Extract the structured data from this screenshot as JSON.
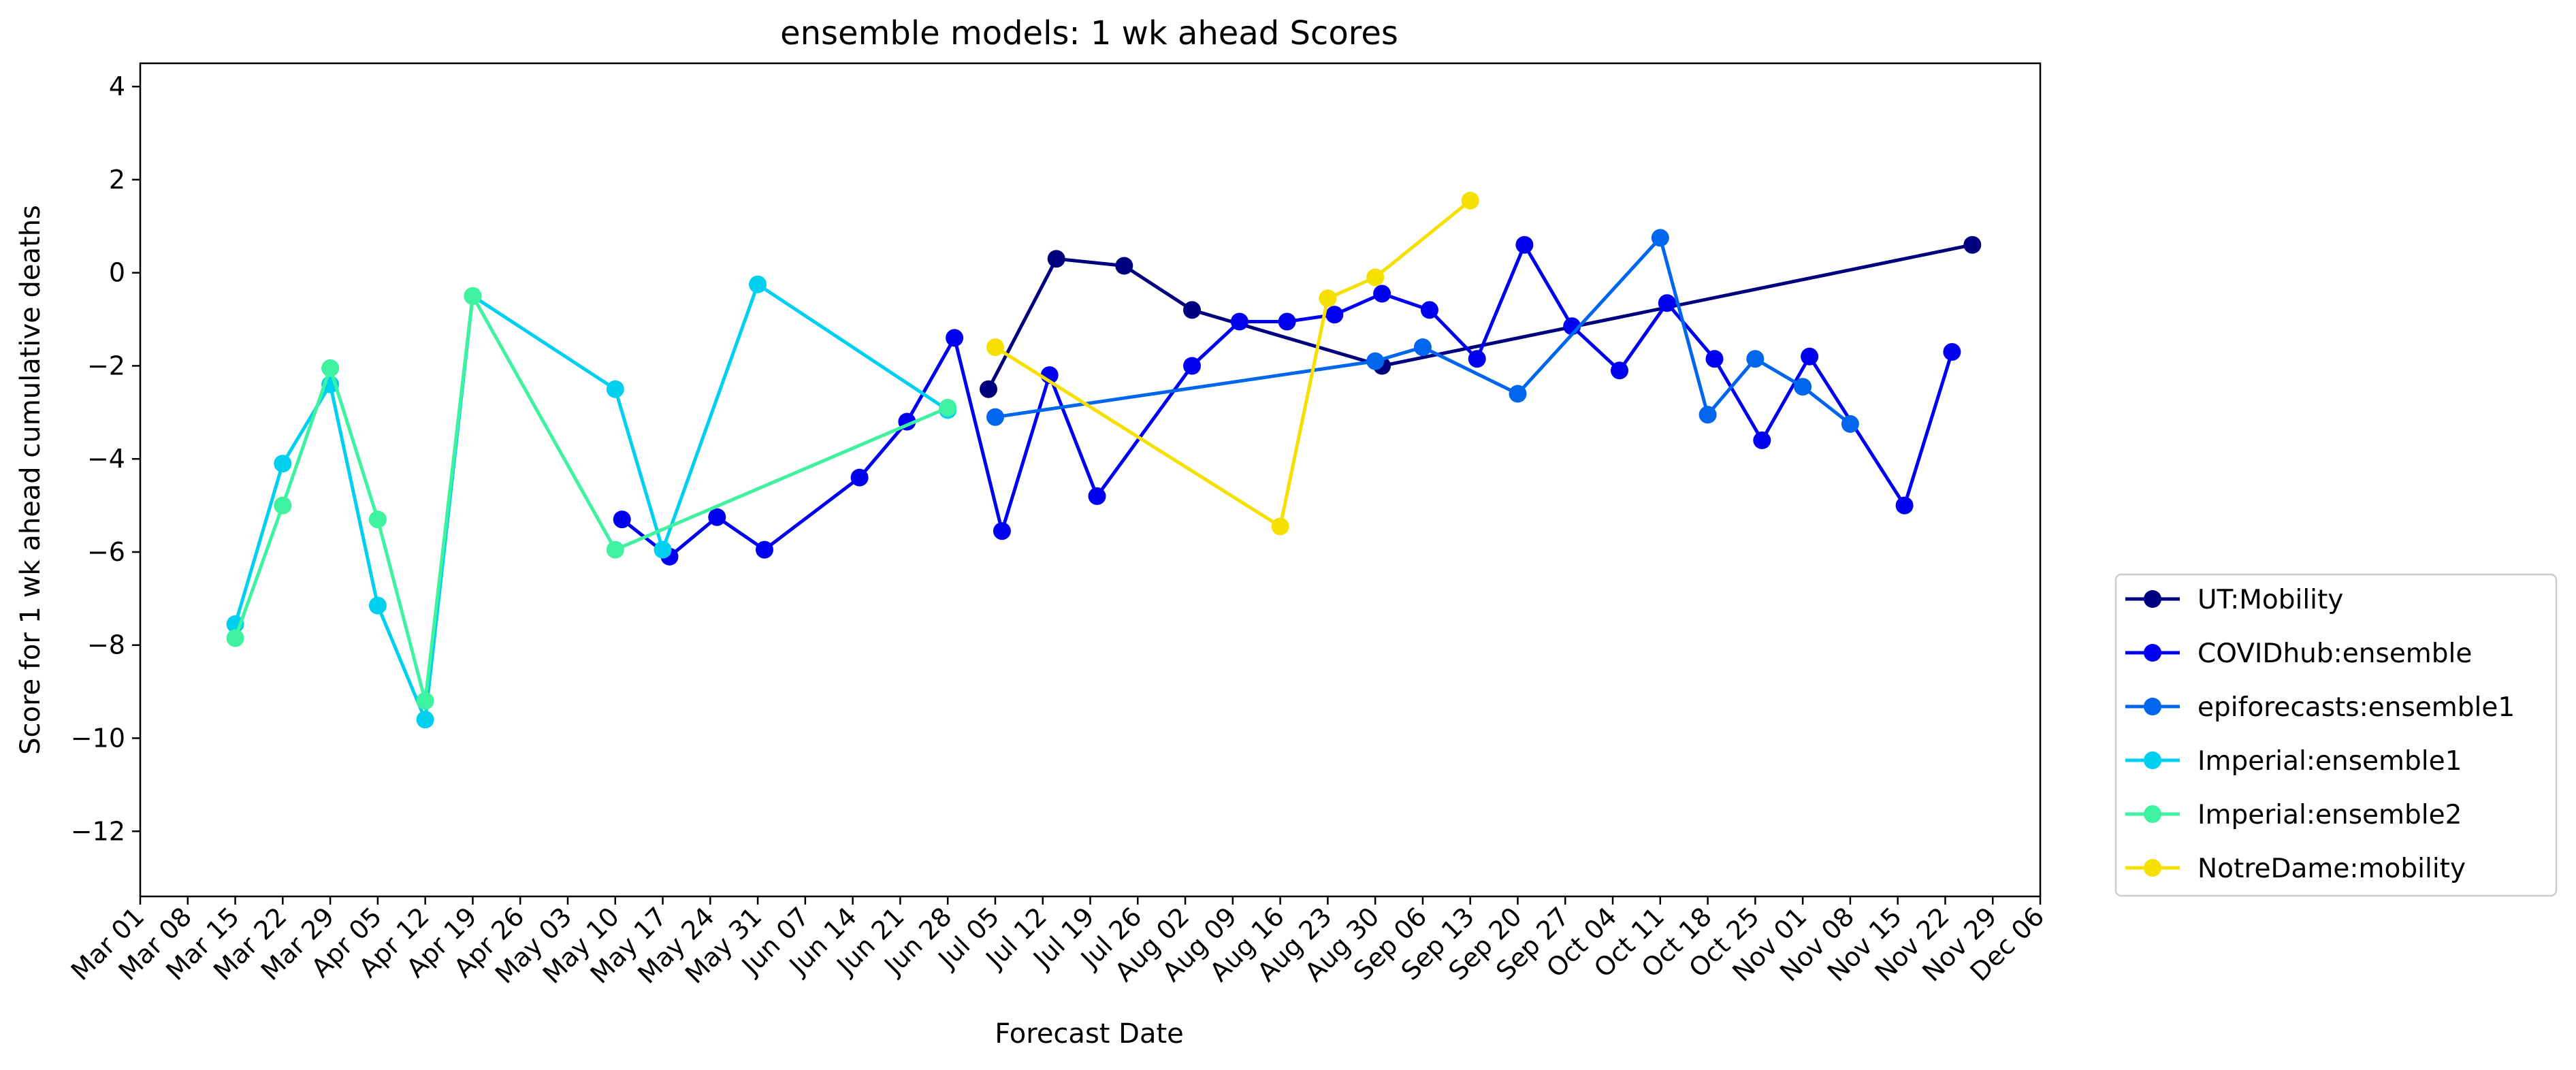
{
  "chart_data": {
    "type": "line",
    "title": "ensemble models: 1 wk ahead Scores",
    "xlabel": "Forecast Date",
    "ylabel": "Score for 1 wk ahead cumulative deaths",
    "ylim": [
      -13.4,
      4.5
    ],
    "yticks": [
      4,
      2,
      0,
      -2,
      -4,
      -6,
      -8,
      -10,
      -12
    ],
    "ytick_labels": [
      "4",
      "2",
      "0",
      "−2",
      "−4",
      "−6",
      "−8",
      "−10",
      "−12"
    ],
    "xlim": [
      0,
      40
    ],
    "x_tick_labels": [
      "Mar 01",
      "Mar 08",
      "Mar 15",
      "Mar 22",
      "Mar 29",
      "Apr 05",
      "Apr 12",
      "Apr 19",
      "Apr 26",
      "May 03",
      "May 10",
      "May 17",
      "May 24",
      "May 31",
      "Jun 07",
      "Jun 14",
      "Jun 21",
      "Jun 28",
      "Jul 05",
      "Jul 12",
      "Jul 19",
      "Jul 26",
      "Aug 02",
      "Aug 09",
      "Aug 16",
      "Aug 23",
      "Aug 30",
      "Sep 06",
      "Sep 13",
      "Sep 20",
      "Sep 27",
      "Oct 04",
      "Oct 11",
      "Oct 18",
      "Oct 25",
      "Nov 01",
      "Nov 08",
      "Nov 15",
      "Nov 22",
      "Nov 29",
      "Dec 06"
    ],
    "legend_position": "right",
    "grid": false,
    "series": [
      {
        "name": "UT:Mobility",
        "color": "#00007f",
        "points": [
          {
            "x": "Jul 04",
            "y": -2.5
          },
          {
            "x": "Jul 14",
            "y": 0.3
          },
          {
            "x": "Jul 24",
            "y": 0.15
          },
          {
            "x": "Aug 03",
            "y": -0.8
          },
          {
            "x": "Aug 31",
            "y": -2.0
          },
          {
            "x": "Nov 26",
            "y": 0.6
          }
        ]
      },
      {
        "name": "COVIDhub:ensemble",
        "color": "#0000f1",
        "points": [
          {
            "x": "May 11",
            "y": -5.3
          },
          {
            "x": "May 18",
            "y": -6.1
          },
          {
            "x": "May 25",
            "y": -5.25
          },
          {
            "x": "Jun 01",
            "y": -5.95
          },
          {
            "x": "Jun 15",
            "y": -4.4
          },
          {
            "x": "Jun 22",
            "y": -3.2
          },
          {
            "x": "Jun 29",
            "y": -1.4
          },
          {
            "x": "Jul 06",
            "y": -5.55
          },
          {
            "x": "Jul 13",
            "y": -2.2
          },
          {
            "x": "Jul 20",
            "y": -4.8
          },
          {
            "x": "Aug 03",
            "y": -2.0
          },
          {
            "x": "Aug 10",
            "y": -1.05
          },
          {
            "x": "Aug 17",
            "y": -1.05
          },
          {
            "x": "Aug 24",
            "y": -0.9
          },
          {
            "x": "Aug 31",
            "y": -0.45
          },
          {
            "x": "Sep 07",
            "y": -0.8
          },
          {
            "x": "Sep 14",
            "y": -1.85
          },
          {
            "x": "Sep 21",
            "y": 0.6
          },
          {
            "x": "Sep 28",
            "y": -1.15
          },
          {
            "x": "Oct 05",
            "y": -2.1
          },
          {
            "x": "Oct 12",
            "y": -0.65
          },
          {
            "x": "Oct 19",
            "y": -1.85
          },
          {
            "x": "Oct 26",
            "y": -3.6
          },
          {
            "x": "Nov 02",
            "y": -1.8
          },
          {
            "x": "Nov 16",
            "y": -5.0
          },
          {
            "x": "Nov 23",
            "y": -1.7
          }
        ]
      },
      {
        "name": "epiforecasts:ensemble1",
        "color": "#0066ee",
        "points": [
          {
            "x": "Jul 05",
            "y": -3.1
          },
          {
            "x": "Aug 30",
            "y": -1.9
          },
          {
            "x": "Sep 06",
            "y": -1.6
          },
          {
            "x": "Sep 20",
            "y": -2.6
          },
          {
            "x": "Oct 11",
            "y": 0.75
          },
          {
            "x": "Oct 18",
            "y": -3.05
          },
          {
            "x": "Oct 25",
            "y": -1.85
          },
          {
            "x": "Nov 01",
            "y": -2.45
          },
          {
            "x": "Nov 08",
            "y": -3.25
          }
        ]
      },
      {
        "name": "Imperial:ensemble1",
        "color": "#00d0f0",
        "points": [
          {
            "x": "Mar 15",
            "y": -7.55
          },
          {
            "x": "Mar 22",
            "y": -4.1
          },
          {
            "x": "Mar 29",
            "y": -2.4
          },
          {
            "x": "Apr 05",
            "y": -7.15
          },
          {
            "x": "Apr 12",
            "y": -9.6
          },
          {
            "x": "Apr 19",
            "y": -0.5
          },
          {
            "x": "May 10",
            "y": -2.5
          },
          {
            "x": "May 17",
            "y": -5.95
          },
          {
            "x": "May 31",
            "y": -0.25
          },
          {
            "x": "Jun 28",
            "y": -2.95
          }
        ]
      },
      {
        "name": "Imperial:ensemble2",
        "color": "#3ef2a0",
        "points": [
          {
            "x": "Mar 15",
            "y": -7.85
          },
          {
            "x": "Mar 22",
            "y": -5.0
          },
          {
            "x": "Mar 29",
            "y": -2.05
          },
          {
            "x": "Apr 05",
            "y": -5.3
          },
          {
            "x": "Apr 12",
            "y": -9.2
          },
          {
            "x": "Apr 19",
            "y": -0.5
          },
          {
            "x": "May 10",
            "y": -5.95
          },
          {
            "x": "Jun 28",
            "y": -2.9
          }
        ]
      },
      {
        "name": "NotreDame:mobility",
        "color": "#f5e000",
        "points": [
          {
            "x": "Jul 05",
            "y": -1.6
          },
          {
            "x": "Aug 16",
            "y": -5.45
          },
          {
            "x": "Aug 23",
            "y": -0.55
          },
          {
            "x": "Aug 30",
            "y": -0.1
          },
          {
            "x": "Sep 13",
            "y": 1.55
          }
        ]
      }
    ]
  }
}
